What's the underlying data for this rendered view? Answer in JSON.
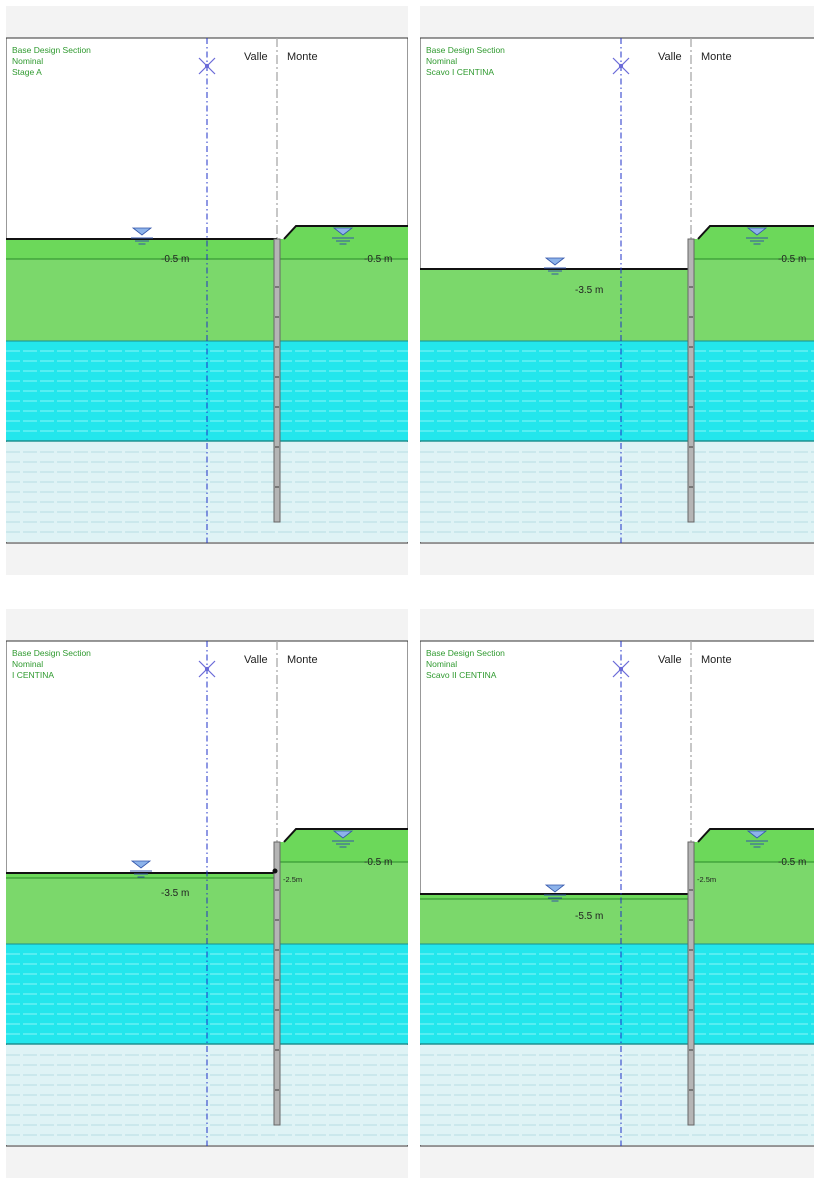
{
  "panels": [
    {
      "title_lines": [
        "Base Design Section",
        "Nominal",
        "Stage A"
      ],
      "side_left": "Valle",
      "side_right": "Monte",
      "left_level": "-0.5 m",
      "right_level": "-0.5 m",
      "wall_label": ""
    },
    {
      "title_lines": [
        "Base Design Section",
        "Nominal",
        "Scavo I CENTINA"
      ],
      "side_left": "Valle",
      "side_right": "Monte",
      "left_level": "-3.5 m",
      "right_level": "-0.5 m",
      "wall_label": ""
    },
    {
      "title_lines": [
        "Base Design Section",
        "Nominal",
        "I CENTINA"
      ],
      "side_left": "Valle",
      "side_right": "Monte",
      "left_level": "-3.5 m",
      "right_level": "-0.5 m",
      "wall_label": "-2.5m"
    },
    {
      "title_lines": [
        "Base Design Section",
        "Nominal",
        "Scavo II CENTINA"
      ],
      "side_left": "Valle",
      "side_right": "Monte",
      "left_level": "-5.5 m",
      "right_level": "-0.5 m",
      "wall_label": "-2.5m"
    }
  ],
  "colors": {
    "soil_green": "#7bd86b",
    "soil_green_top": "#6cd85a",
    "clay_cyan": "#23e6ec",
    "silt_light": "#dff3f5",
    "water_symbol": "#8db3ea",
    "axis_blue": "#1f32c8",
    "title_green": "#2f9a2f"
  }
}
